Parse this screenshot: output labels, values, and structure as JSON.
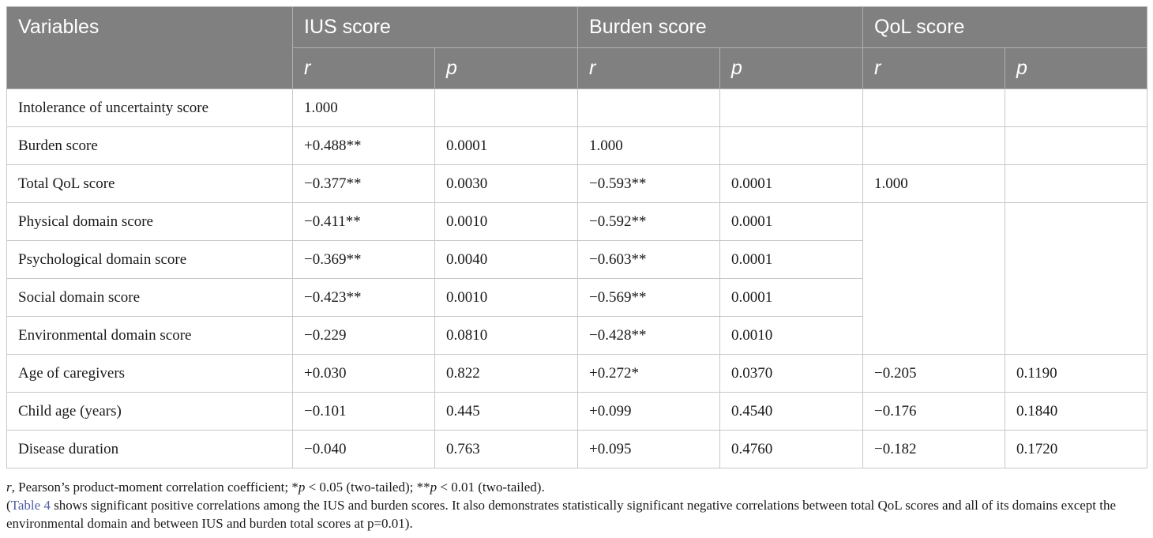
{
  "table": {
    "header_row1": [
      "Variables",
      "IUS score",
      "Burden score",
      "QoL score"
    ],
    "header_row2": [
      "r",
      "p",
      "r",
      "p",
      "r",
      "p"
    ],
    "rows": [
      {
        "label": "Intolerance of uncertainty score",
        "ius_r": "1.000",
        "ius_p": "",
        "burden_r": "",
        "burden_p": "",
        "qol_r": "",
        "qol_p": ""
      },
      {
        "label": "Burden score",
        "ius_r": "+0.488**",
        "ius_p": "0.0001",
        "burden_r": "1.000",
        "burden_p": "",
        "qol_r": "",
        "qol_p": ""
      },
      {
        "label": "Total QoL score",
        "ius_r": "−0.377**",
        "ius_p": "0.0030",
        "burden_r": "−0.593**",
        "burden_p": "0.0001",
        "qol_r": "1.000",
        "qol_p": ""
      },
      {
        "label": "Physical domain score",
        "ius_r": "−0.411**",
        "ius_p": "0.0010",
        "burden_r": "−0.592**",
        "burden_p": "0.0001"
      },
      {
        "label": "Psychological domain score",
        "ius_r": "−0.369**",
        "ius_p": "0.0040",
        "burden_r": "−0.603**",
        "burden_p": "0.0001"
      },
      {
        "label": "Social domain score",
        "ius_r": "−0.423**",
        "ius_p": "0.0010",
        "burden_r": "−0.569**",
        "burden_p": "0.0001"
      },
      {
        "label": "Environmental domain score",
        "ius_r": "−0.229",
        "ius_p": "0.0810",
        "burden_r": "−0.428**",
        "burden_p": "0.0010"
      },
      {
        "label": "Age of caregivers",
        "ius_r": "+0.030",
        "ius_p": "0.822",
        "burden_r": "+0.272*",
        "burden_p": "0.0370",
        "qol_r": "−0.205",
        "qol_p": "0.1190"
      },
      {
        "label": "Child age (years)",
        "ius_r": "−0.101",
        "ius_p": "0.445",
        "burden_r": "+0.099",
        "burden_p": "0.4540",
        "qol_r": "−0.176",
        "qol_p": "0.1840"
      },
      {
        "label": "Disease duration",
        "ius_r": "−0.040",
        "ius_p": "0.763",
        "burden_r": "+0.095",
        "burden_p": "0.4760",
        "qol_r": "−0.182",
        "qol_p": "0.1720"
      }
    ]
  },
  "footnote": {
    "line1": {
      "r_symbol": "r",
      "r_def": ", Pearson’s product-moment correlation coefficient; *",
      "p1": "p",
      "p1_rest": " < 0.05 (two-tailed); **",
      "p2": "p",
      "p2_rest": " < 0.01 (two-tailed)."
    },
    "note": {
      "open": "(",
      "link": "Table 4",
      "text": " shows significant positive correlations among the IUS and burden scores. It also demonstrates statistically significant negative correlations between total QoL scores and all of its domains except the environmental domain and between IUS and burden total scores at p=0.01)."
    }
  }
}
